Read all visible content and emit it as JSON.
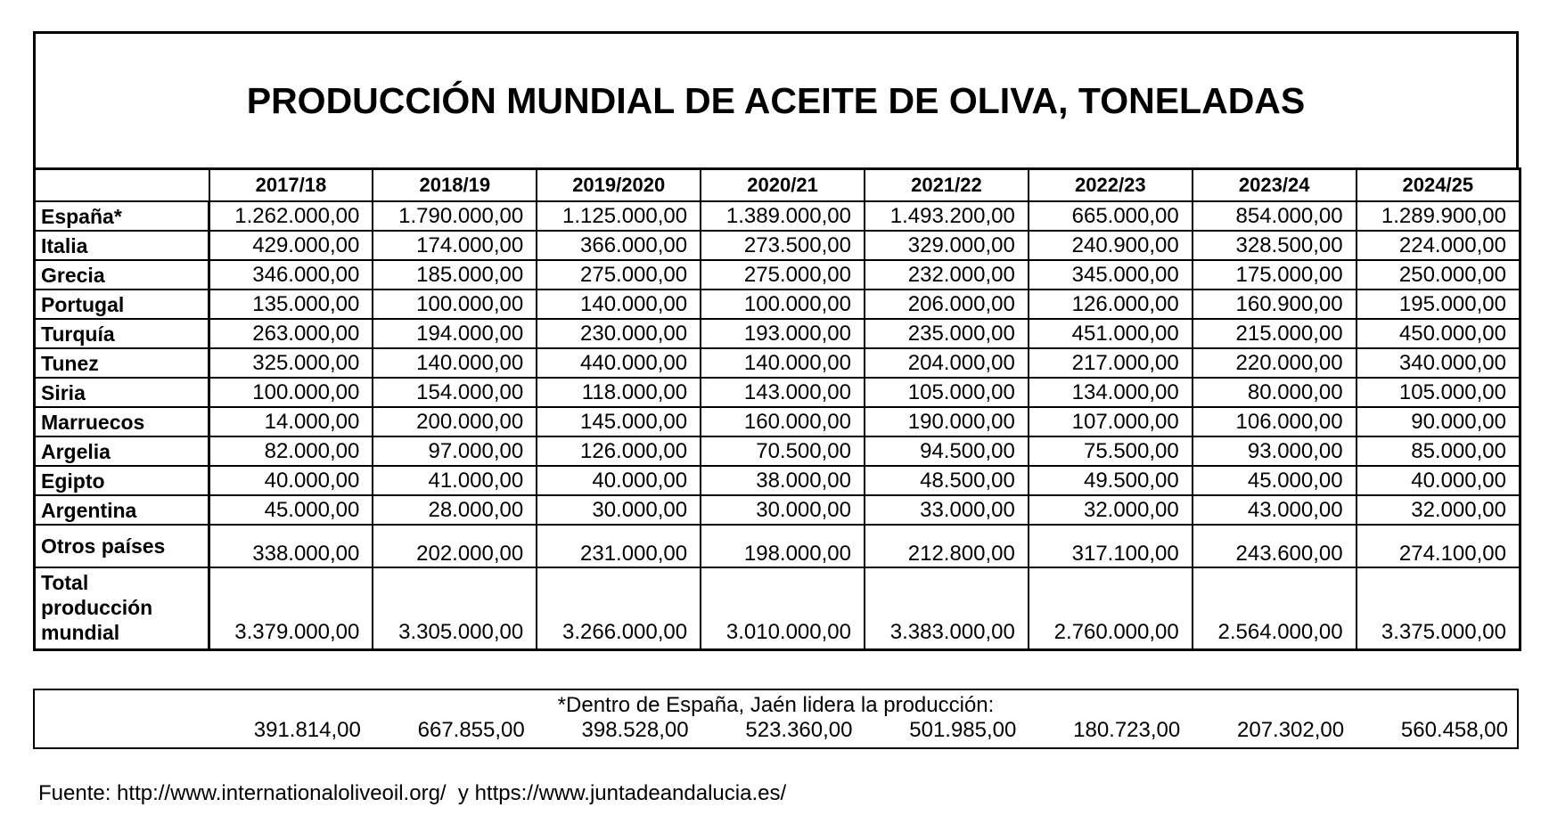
{
  "title": "PRODUCCIÓN MUNDIAL DE ACEITE DE OLIVA, TONELADAS",
  "table": {
    "header": [
      "2017/18",
      "2018/19",
      "2019/2020",
      "2020/21",
      "2021/22",
      "2022/23",
      "2023/24",
      "2024/25"
    ],
    "rows": [
      {
        "label": "España*",
        "values": [
          "1.262.000,00",
          "1.790.000,00",
          "1.125.000,00",
          "1.389.000,00",
          "1.493.200,00",
          "665.000,00",
          "854.000,00",
          "1.289.900,00"
        ]
      },
      {
        "label": "Italia",
        "values": [
          "429.000,00",
          "174.000,00",
          "366.000,00",
          "273.500,00",
          "329.000,00",
          "240.900,00",
          "328.500,00",
          "224.000,00"
        ]
      },
      {
        "label": "Grecia",
        "values": [
          "346.000,00",
          "185.000,00",
          "275.000,00",
          "275.000,00",
          "232.000,00",
          "345.000,00",
          "175.000,00",
          "250.000,00"
        ]
      },
      {
        "label": "Portugal",
        "values": [
          "135.000,00",
          "100.000,00",
          "140.000,00",
          "100.000,00",
          "206.000,00",
          "126.000,00",
          "160.900,00",
          "195.000,00"
        ]
      },
      {
        "label": "Turquía",
        "values": [
          "263.000,00",
          "194.000,00",
          "230.000,00",
          "193.000,00",
          "235.000,00",
          "451.000,00",
          "215.000,00",
          "450.000,00"
        ]
      },
      {
        "label": "Tunez",
        "values": [
          "325.000,00",
          "140.000,00",
          "440.000,00",
          "140.000,00",
          "204.000,00",
          "217.000,00",
          "220.000,00",
          "340.000,00"
        ]
      },
      {
        "label": "Siria",
        "values": [
          "100.000,00",
          "154.000,00",
          "118.000,00",
          "143.000,00",
          "105.000,00",
          "134.000,00",
          "80.000,00",
          "105.000,00"
        ]
      },
      {
        "label": "Marruecos",
        "values": [
          "14.000,00",
          "200.000,00",
          "145.000,00",
          "160.000,00",
          "190.000,00",
          "107.000,00",
          "106.000,00",
          "90.000,00"
        ]
      },
      {
        "label": "Argelia",
        "values": [
          "82.000,00",
          "97.000,00",
          "126.000,00",
          "70.500,00",
          "94.500,00",
          "75.500,00",
          "93.000,00",
          "85.000,00"
        ]
      },
      {
        "label": "Egipto",
        "values": [
          "40.000,00",
          "41.000,00",
          "40.000,00",
          "38.000,00",
          "48.500,00",
          "49.500,00",
          "45.000,00",
          "40.000,00"
        ]
      },
      {
        "label": "Argentina",
        "values": [
          "45.000,00",
          "28.000,00",
          "30.000,00",
          "30.000,00",
          "33.000,00",
          "32.000,00",
          "43.000,00",
          "32.000,00"
        ]
      },
      {
        "label": "Otros países",
        "values": [
          "338.000,00",
          "202.000,00",
          "231.000,00",
          "198.000,00",
          "212.800,00",
          "317.100,00",
          "243.600,00",
          "274.100,00"
        ]
      },
      {
        "label": "Total producción mundial",
        "values": [
          "3.379.000,00",
          "3.305.000,00",
          "3.266.000,00",
          "3.010.000,00",
          "3.383.000,00",
          "2.760.000,00",
          "2.564.000,00",
          "3.375.000,00"
        ]
      }
    ]
  },
  "footnote": {
    "text": "*Dentro de España, Jaén lidera la producción:",
    "values": [
      "391.814,00",
      "667.855,00",
      "398.528,00",
      "523.360,00",
      "501.985,00",
      "180.723,00",
      "207.302,00",
      "560.458,00"
    ]
  },
  "source": "Fuente: http://www.internationaloliveoil.org/  y https://www.juntadeandalucia.es/"
}
